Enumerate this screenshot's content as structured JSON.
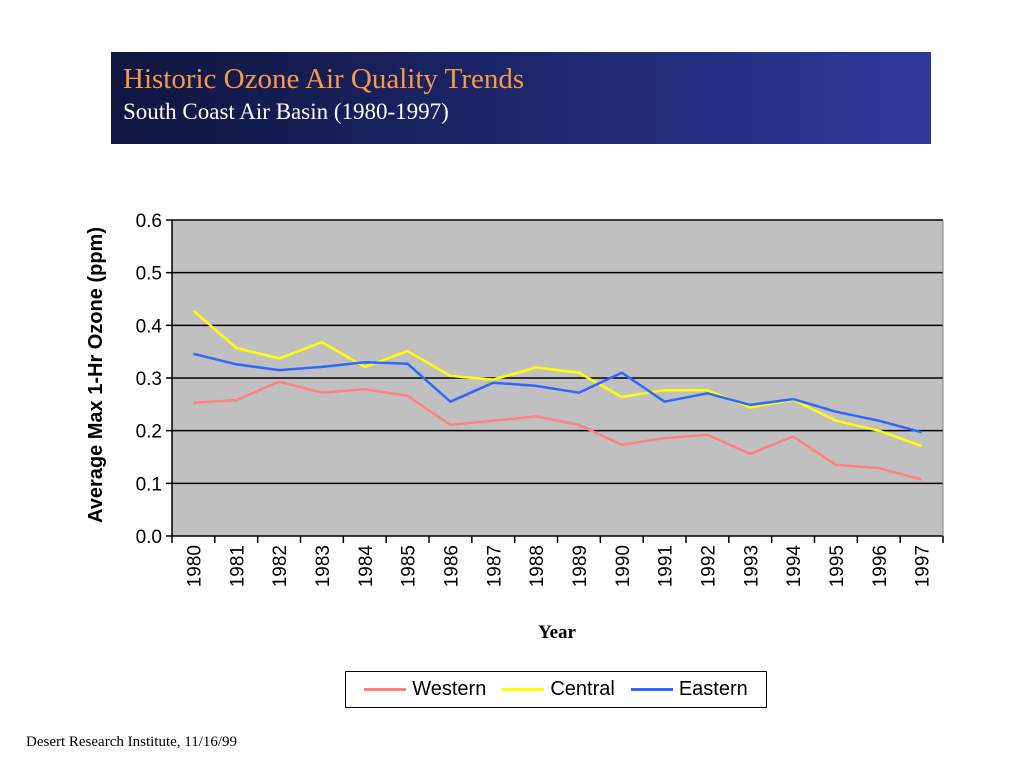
{
  "slide": {
    "title": "Historic Ozone Air Quality Trends",
    "subtitle": "South Coast Air Basin (1980-1997)",
    "footer": "Desert Research Institute, 11/16/99"
  },
  "colors": {
    "title_text": "#f79a45",
    "banner": "#1c2466",
    "plot_background": "#c0c0c0",
    "Western": "#ff8080",
    "Central": "#ffff00",
    "Eastern": "#3366ff"
  },
  "chart_data": {
    "type": "line",
    "xlabel": "Year",
    "ylabel": "Average Max 1-Hr Ozone (ppm)",
    "ylim": [
      0,
      0.6
    ],
    "yticks": [
      "0.0",
      "0.1",
      "0.2",
      "0.3",
      "0.4",
      "0.5",
      "0.6"
    ],
    "grid": true,
    "legend_position": "bottom",
    "categories": [
      "1980",
      "1981",
      "1982",
      "1983",
      "1984",
      "1985",
      "1986",
      "1987",
      "1988",
      "1989",
      "1990",
      "1991",
      "1992",
      "1993",
      "1994",
      "1995",
      "1996",
      "1997"
    ],
    "series": [
      {
        "name": "Western",
        "values": [
          0.253,
          0.258,
          0.293,
          0.272,
          0.279,
          0.266,
          0.211,
          0.219,
          0.227,
          0.211,
          0.173,
          0.186,
          0.192,
          0.156,
          0.189,
          0.135,
          0.129,
          0.107
        ]
      },
      {
        "name": "Central",
        "values": [
          0.428,
          0.357,
          0.337,
          0.368,
          0.321,
          0.351,
          0.304,
          0.297,
          0.32,
          0.31,
          0.264,
          0.277,
          0.277,
          0.244,
          0.259,
          0.219,
          0.2,
          0.171
        ]
      },
      {
        "name": "Eastern",
        "values": [
          0.346,
          0.326,
          0.315,
          0.321,
          0.33,
          0.327,
          0.255,
          0.291,
          0.285,
          0.272,
          0.31,
          0.255,
          0.271,
          0.249,
          0.26,
          0.236,
          0.219,
          0.197
        ]
      }
    ]
  }
}
